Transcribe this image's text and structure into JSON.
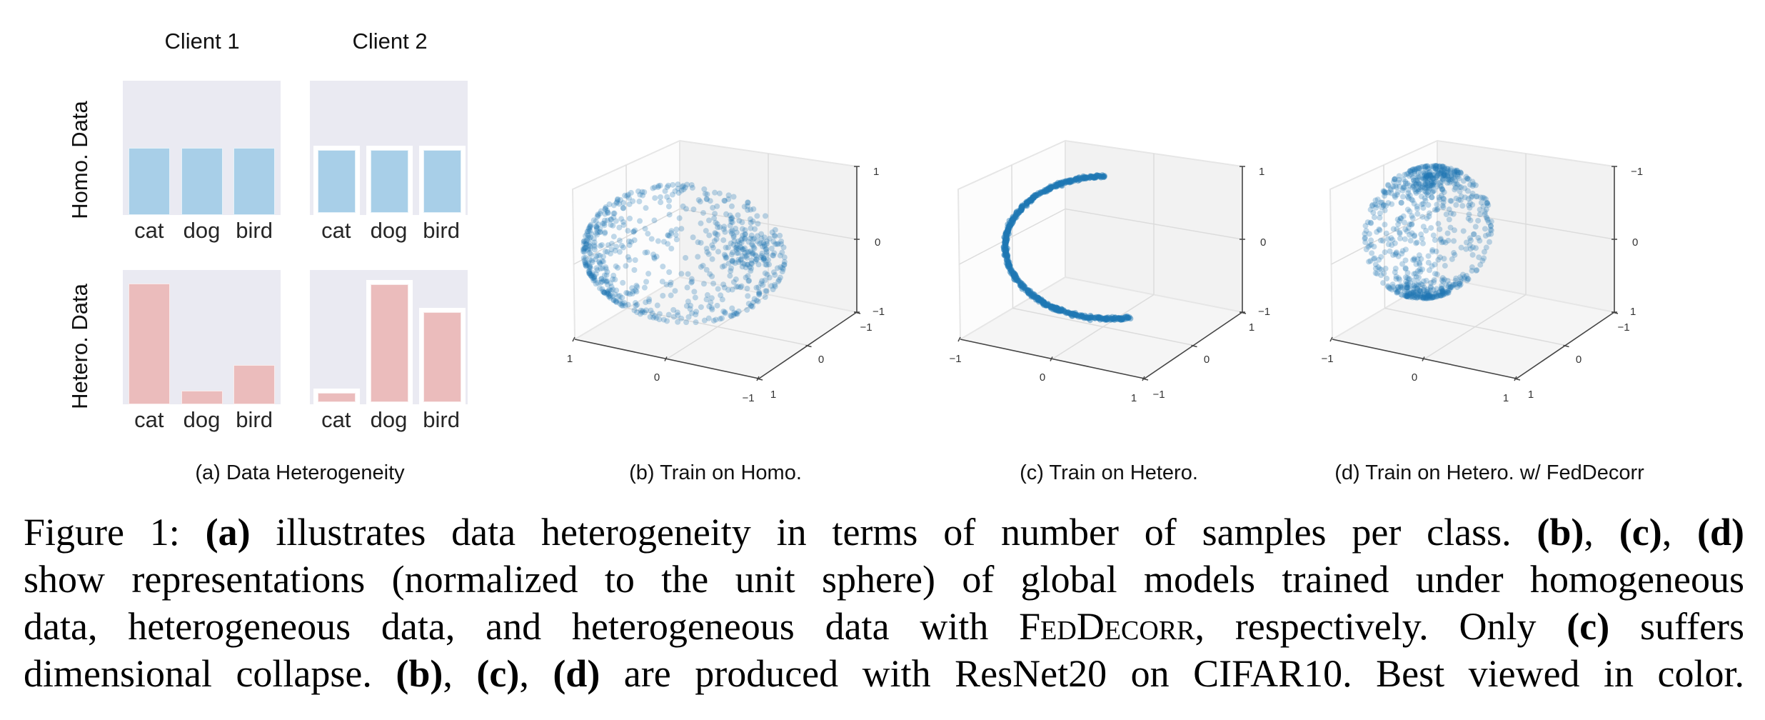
{
  "figure": {
    "panel_a": {
      "column_titles": [
        "Client 1",
        "Client 2"
      ],
      "row_labels": [
        "Homo. Data",
        "Hetero. Data"
      ],
      "categories": [
        "cat",
        "dog",
        "bird"
      ],
      "subcaption": "(a) Data Heterogeneity"
    },
    "panel_b": {
      "subcaption": "(b) Train on Homo."
    },
    "panel_c": {
      "subcaption": "(c) Train on Hetero."
    },
    "panel_d": {
      "subcaption": "(d) Train on Hetero. w/ FedDecorr"
    }
  },
  "caption": {
    "lines": [
      [
        {
          "t": "Figure 1: "
        },
        {
          "t": "(a)",
          "b": true
        },
        {
          "t": " illustrates data heterogeneity in terms of number of samples per class. "
        },
        {
          "t": "(b)",
          "b": true
        },
        {
          "t": ", "
        },
        {
          "t": "(c)",
          "b": true
        },
        {
          "t": ", "
        },
        {
          "t": "(d)",
          "b": true
        }
      ],
      [
        {
          "t": "show representations (normalized to the unit sphere) of global models trained under homogeneous"
        }
      ],
      [
        {
          "t": "data, heterogeneous data, and heterogeneous data with "
        },
        {
          "t": "FedDecorr",
          "sc": true
        },
        {
          "t": ", respectively. Only "
        },
        {
          "t": "(c)",
          "b": true
        },
        {
          "t": " suffers"
        }
      ],
      [
        {
          "t": "dimensional collapse. "
        },
        {
          "t": "(b)",
          "b": true
        },
        {
          "t": ", "
        },
        {
          "t": "(c)",
          "b": true
        },
        {
          "t": ", "
        },
        {
          "t": "(d)",
          "b": true
        },
        {
          "t": " are produced with ResNet20 on CIFAR10. Best viewed in color."
        }
      ]
    ]
  },
  "colors": {
    "panel_bg": "#eaeaf2",
    "homo_bar": "#a8cfe8",
    "hetero_bar": "#ebbcbc",
    "scatter_point": "#1f77b4",
    "pane_back": "#f2f2f2",
    "pane_floor": "#f5f5f5",
    "pane_left": "#fcfcfc",
    "gridline": "#dcdcdc",
    "axis": "#444444"
  },
  "chart_data": [
    {
      "type": "bar",
      "title": "Client 1 — Homo. Data",
      "categories": [
        "cat",
        "dog",
        "bird"
      ],
      "values": [
        0.5,
        0.5,
        0.5
      ],
      "ylim": [
        0,
        1
      ],
      "xlabel": "",
      "ylabel": "Homo. Data",
      "grid": false
    },
    {
      "type": "bar",
      "title": "Client 2 — Homo. Data",
      "categories": [
        "cat",
        "dog",
        "bird"
      ],
      "values": [
        0.47,
        0.47,
        0.47
      ],
      "ylim": [
        0,
        1
      ],
      "xlabel": "",
      "ylabel": "",
      "grid": false
    },
    {
      "type": "bar",
      "title": "Client 1 — Hetero. Data",
      "categories": [
        "cat",
        "dog",
        "bird"
      ],
      "values": [
        0.9,
        0.1,
        0.29
      ],
      "ylim": [
        0,
        1
      ],
      "xlabel": "",
      "ylabel": "Hetero. Data",
      "grid": false
    },
    {
      "type": "bar",
      "title": "Client 2 — Hetero. Data",
      "categories": [
        "cat",
        "dog",
        "bird"
      ],
      "values": [
        0.07,
        0.88,
        0.67
      ],
      "ylim": [
        0,
        1
      ],
      "xlabel": "",
      "ylabel": "",
      "grid": false
    },
    {
      "type": "scatter",
      "title": "(b) Train on Homo.",
      "description": "3D scatter of representations spread over the unit sphere (full 3D coverage)",
      "distribution": "sphere_surface",
      "n_points": 700,
      "xticks": [
        "1",
        "0",
        "−1"
      ],
      "yticks": [
        "−1",
        "0",
        "1"
      ],
      "zticks": [
        "1",
        "0",
        "−1"
      ],
      "xlim": [
        -1,
        1
      ],
      "ylim": [
        -1,
        1
      ],
      "zlim": [
        -1,
        1
      ],
      "grid": true
    },
    {
      "type": "scatter",
      "title": "(c) Train on Hetero.",
      "description": "3D scatter collapsed to a thin arc (dimensional collapse)",
      "distribution": "arc",
      "n_points": 700,
      "xticks": [
        "−1",
        "0",
        "1"
      ],
      "yticks": [
        "1",
        "0",
        "−1"
      ],
      "zticks": [
        "1",
        "0",
        "−1"
      ],
      "xlim": [
        -1,
        1
      ],
      "ylim": [
        -1,
        1
      ],
      "zlim": [
        -1,
        1
      ],
      "grid": true
    },
    {
      "type": "scatter",
      "title": "(d) Train on Hetero. w/ FedDecorr",
      "description": "3D scatter spread over the sphere with denser clusters at top and bottom-center",
      "distribution": "sphere_surface_clustered",
      "n_points": 800,
      "xticks": [
        "−1",
        "0",
        "1"
      ],
      "yticks": [
        "−1",
        "0",
        "1"
      ],
      "zticks": [
        "−1",
        "0",
        "1"
      ],
      "xlim": [
        -1,
        1
      ],
      "ylim": [
        -1,
        1
      ],
      "zlim": [
        -1,
        1
      ],
      "grid": true
    }
  ]
}
